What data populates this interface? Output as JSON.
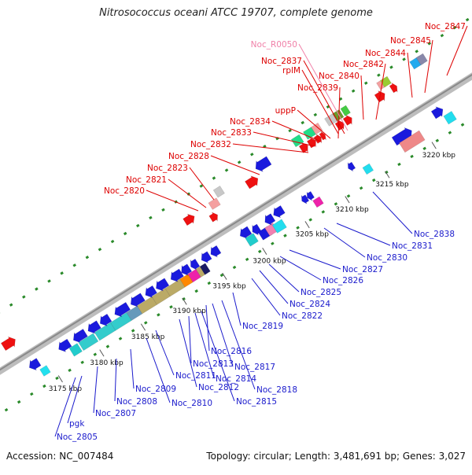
{
  "title": "Nitrosococcus oceani ATCC 19707, complete genome",
  "footer": {
    "accession": "Accession: NC_007484",
    "summary": "Topology: circular; Length: 3,481,691 bp; Genes: 3,027"
  },
  "scale_unit": "kbp",
  "scale_ticks_kbp": [
    3175,
    3180,
    3185,
    3190,
    3195,
    3200,
    3205,
    3210,
    3215,
    3220
  ],
  "colors": {
    "forward_label": "#dd0000",
    "reverse_label": "#1a1acc",
    "rna_label": "#f080a8",
    "backbone": "#a0a0a0",
    "dots": "#2a8a2a"
  },
  "forward_labels": [
    "Noc_2820",
    "Noc_2821",
    "Noc_2823",
    "Noc_2828",
    "Noc_2832",
    "Noc_2833",
    "Noc_2834",
    "uppP",
    "Noc_2839",
    "rplM",
    "Noc_2837",
    "Noc_R0050",
    "Noc_2840",
    "Noc_2842",
    "Noc_2844",
    "Noc_2845",
    "Noc_2847"
  ],
  "reverse_labels": [
    "Noc_2805",
    "pgk",
    "Noc_2807",
    "Noc_2808",
    "Noc_2809",
    "Noc_2810",
    "Noc_2811",
    "Noc_2812",
    "Noc_2813",
    "Noc_2814",
    "Noc_2815",
    "Noc_2816",
    "Noc_2817",
    "Noc_2818",
    "Noc_2819",
    "Noc_2822",
    "Noc_2824",
    "Noc_2825",
    "Noc_2826",
    "Noc_2827",
    "Noc_2830",
    "Noc_2831",
    "Noc_2838"
  ]
}
